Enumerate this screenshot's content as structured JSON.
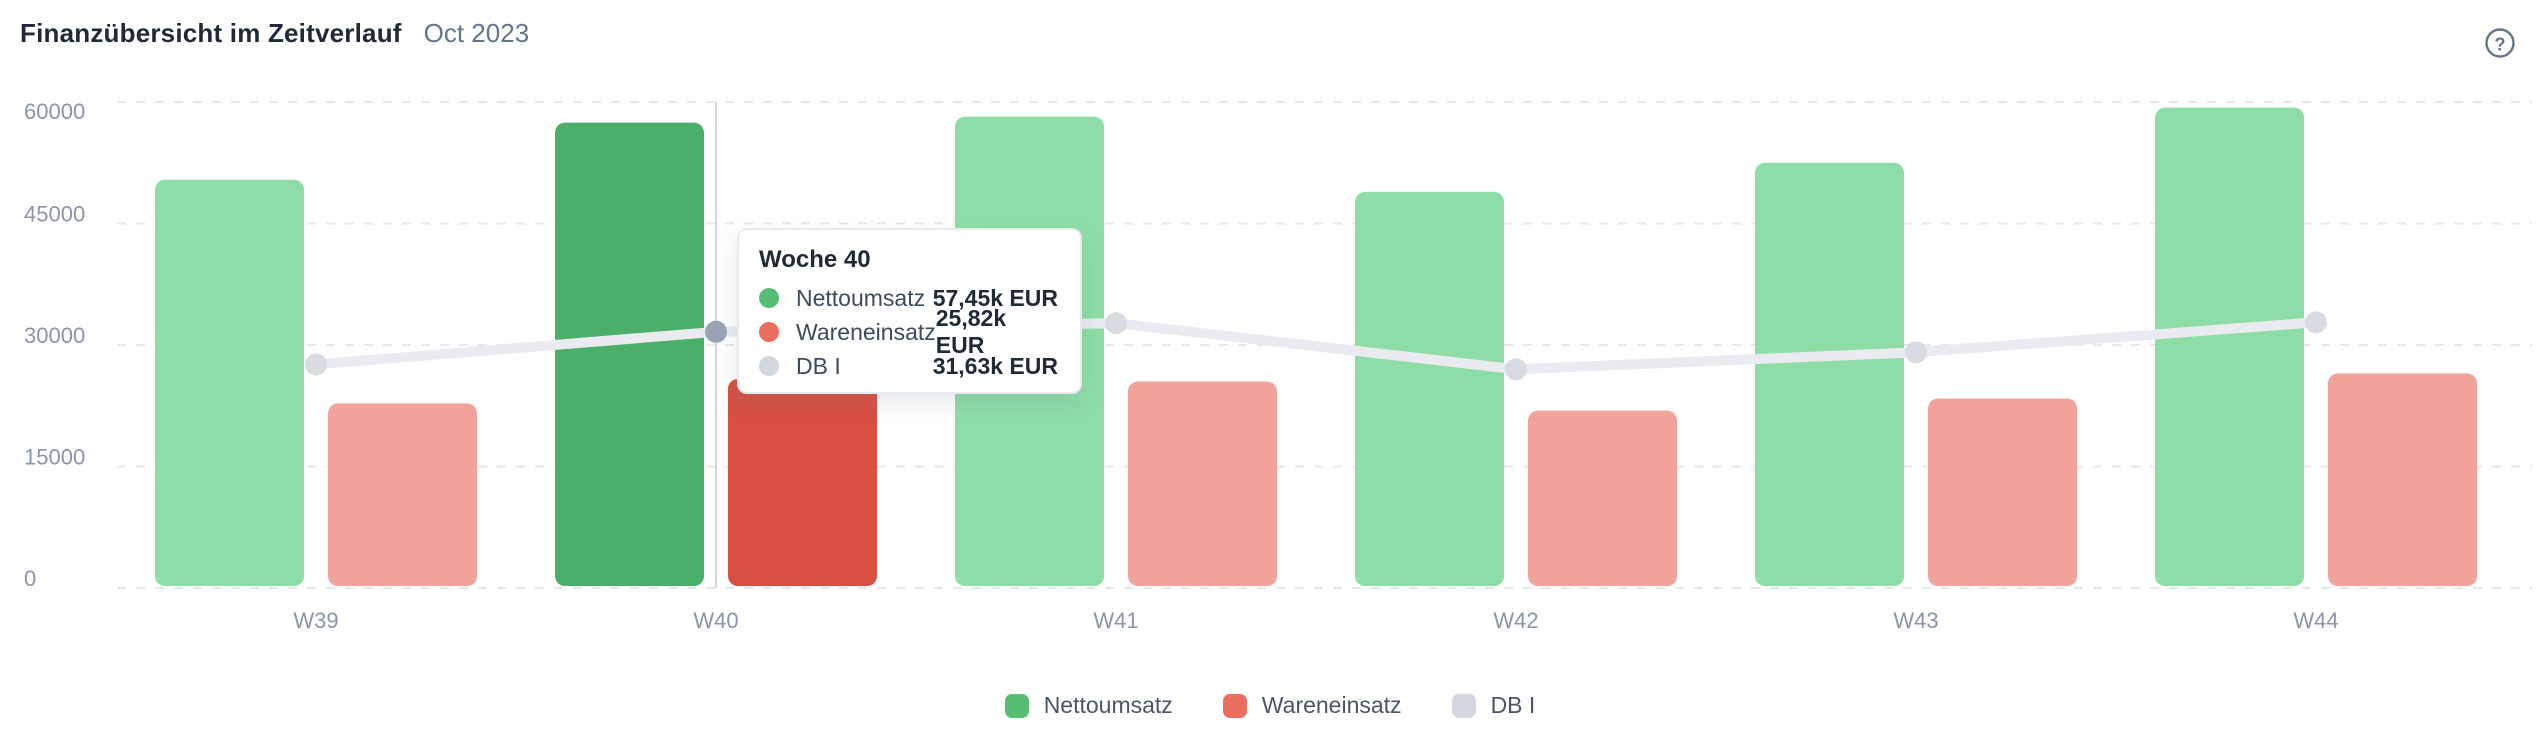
{
  "header": {
    "title": "Finanzübersicht im Zeitverlauf",
    "period": "Oct 2023",
    "help_icon": "circled-question-mark",
    "help_color": "#64748b"
  },
  "chart_data": {
    "type": "bar",
    "title": "Finanzübersicht im Zeitverlauf",
    "subtitle": "Oct 2023",
    "xlabel": "",
    "ylabel": "",
    "unit": "EUR",
    "categories": [
      "W39",
      "W40",
      "W41",
      "W42",
      "W43",
      "W44"
    ],
    "series": [
      {
        "name": "Nettoumsatz",
        "type": "bar",
        "color": "#8edda6",
        "highlight_color": "#4caf69",
        "values": [
          50400,
          57450,
          58200,
          48900,
          52500,
          59300
        ]
      },
      {
        "name": "Wareneinsatz",
        "type": "bar",
        "color": "#f2a39b",
        "highlight_color": "#d94f42",
        "values": [
          22800,
          25820,
          25500,
          21900,
          23400,
          26500
        ]
      },
      {
        "name": "DB I",
        "type": "line",
        "color": "#e9ebf0",
        "dot_color": "#d8dbe2",
        "active_dot_color": "#9aa3b4",
        "values": [
          27600,
          31630,
          32700,
          27000,
          29100,
          32800
        ]
      }
    ],
    "highlight_category": "W40",
    "highlight_index": 1,
    "yticks": [
      0,
      15000,
      30000,
      45000,
      60000
    ],
    "ylim": [
      0,
      60000
    ],
    "grid": "horizontal-dashed",
    "grid_color": "#e5e8ed",
    "axis_text_color": "#8b95a7",
    "legend_position": "bottom-center"
  },
  "tooltip": {
    "title": "Woche 40",
    "rows": [
      {
        "label": "Nettoumsatz",
        "value": "57,45k EUR",
        "color": "#57bd73"
      },
      {
        "label": "Wareneinsatz",
        "value": "25,82k EUR",
        "color": "#ec6e5f"
      },
      {
        "label": "DB I",
        "value": "31,63k EUR",
        "color": "#d3d7df"
      }
    ]
  },
  "legend": {
    "items": [
      {
        "label": "Nettoumsatz",
        "color": "#57bd73"
      },
      {
        "label": "Wareneinsatz",
        "color": "#ec6e5f"
      },
      {
        "label": "DB I",
        "color": "#d3d7df"
      }
    ]
  }
}
